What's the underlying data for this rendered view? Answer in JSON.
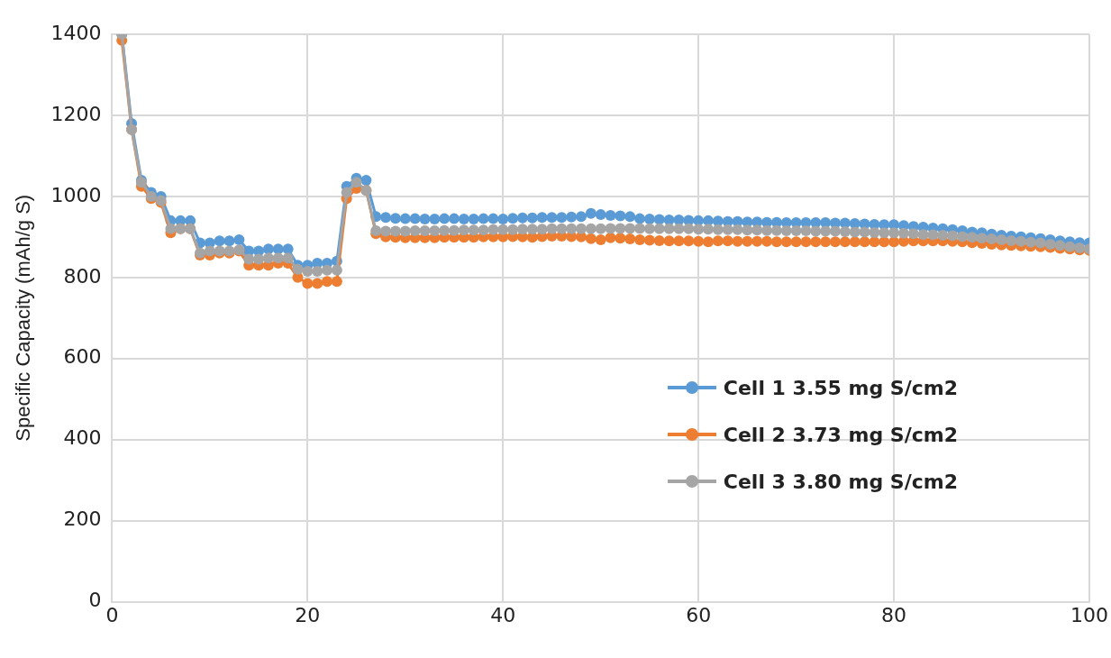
{
  "chart_data": {
    "type": "line",
    "ylabel": "Specific Capacity (mAh/g S)",
    "xlim": [
      0,
      100
    ],
    "xticks": [
      0,
      20,
      40,
      60,
      80,
      100
    ],
    "ylim": [
      0,
      1400
    ],
    "yticks": [
      0,
      200,
      400,
      600,
      800,
      1000,
      1200,
      1400
    ],
    "grid": true,
    "legend": "right",
    "marker": "circle",
    "line_style": "solid",
    "x": [
      1,
      2,
      3,
      4,
      5,
      6,
      7,
      8,
      9,
      10,
      11,
      12,
      13,
      14,
      15,
      16,
      17,
      18,
      19,
      20,
      21,
      22,
      23,
      24,
      25,
      26,
      27,
      28,
      29,
      30,
      31,
      32,
      33,
      34,
      35,
      36,
      37,
      38,
      39,
      40,
      41,
      42,
      43,
      44,
      45,
      46,
      47,
      48,
      49,
      50,
      51,
      52,
      53,
      54,
      55,
      56,
      57,
      58,
      59,
      60,
      61,
      62,
      63,
      64,
      65,
      66,
      67,
      68,
      69,
      70,
      71,
      72,
      73,
      74,
      75,
      76,
      77,
      78,
      79,
      80,
      81,
      82,
      83,
      84,
      85,
      86,
      87,
      88,
      89,
      90,
      91,
      92,
      93,
      94,
      95,
      96,
      97,
      98,
      99,
      100
    ],
    "series": [
      {
        "name": "Cell 1 3.55 mg S/cm2",
        "color": "#5b9bd5",
        "values": [
          1400,
          1180,
          1040,
          1010,
          1000,
          940,
          940,
          940,
          885,
          885,
          890,
          890,
          893,
          865,
          865,
          870,
          870,
          870,
          830,
          830,
          835,
          835,
          840,
          1025,
          1045,
          1040,
          950,
          948,
          946,
          945,
          945,
          944,
          944,
          945,
          945,
          944,
          944,
          945,
          945,
          944,
          946,
          947,
          947,
          948,
          948,
          948,
          949,
          950,
          958,
          955,
          953,
          952,
          950,
          945,
          944,
          943,
          942,
          942,
          941,
          940,
          940,
          939,
          938,
          938,
          937,
          937,
          936,
          936,
          935,
          935,
          935,
          935,
          935,
          934,
          934,
          933,
          932,
          931,
          930,
          930,
          928,
          926,
          924,
          922,
          920,
          918,
          915,
          912,
          910,
          907,
          904,
          902,
          900,
          898,
          896,
          893,
          890,
          888,
          886,
          885
        ]
      },
      {
        "name": "Cell 2 3.73 mg S/cm2",
        "color": "#ed7d31",
        "values": [
          1385,
          1165,
          1025,
          995,
          985,
          910,
          920,
          920,
          855,
          855,
          860,
          860,
          865,
          830,
          830,
          830,
          835,
          835,
          800,
          785,
          785,
          790,
          790,
          995,
          1020,
          1015,
          908,
          900,
          899,
          898,
          898,
          898,
          898,
          899,
          899,
          899,
          899,
          900,
          900,
          900,
          901,
          900,
          899,
          901,
          902,
          902,
          901,
          900,
          896,
          893,
          898,
          897,
          895,
          893,
          892,
          891,
          890,
          890,
          890,
          889,
          888,
          890,
          890,
          889,
          889,
          889,
          889,
          888,
          888,
          888,
          888,
          888,
          888,
          888,
          888,
          888,
          888,
          888,
          888,
          888,
          889,
          890,
          890,
          890,
          890,
          889,
          888,
          886,
          884,
          882,
          880,
          879,
          878,
          877,
          876,
          874,
          872,
          870,
          868,
          867
        ]
      },
      {
        "name": "Cell 3 3.80 mg S/cm2",
        "color": "#a5a5a5",
        "values": [
          1400,
          1165,
          1035,
          1000,
          990,
          920,
          920,
          920,
          860,
          865,
          865,
          865,
          868,
          845,
          845,
          848,
          848,
          848,
          820,
          815,
          815,
          818,
          818,
          1010,
          1035,
          1015,
          915,
          914,
          914,
          914,
          915,
          915,
          915,
          916,
          916,
          917,
          917,
          917,
          918,
          918,
          918,
          919,
          919,
          919,
          920,
          920,
          920,
          920,
          920,
          920,
          921,
          921,
          921,
          921,
          920,
          920,
          920,
          920,
          920,
          919,
          919,
          918,
          918,
          918,
          917,
          917,
          916,
          916,
          915,
          915,
          915,
          914,
          914,
          914,
          913,
          912,
          912,
          911,
          910,
          910,
          909,
          908,
          906,
          905,
          904,
          903,
          901,
          899,
          897,
          895,
          893,
          891,
          889,
          887,
          885,
          882,
          879,
          876,
          873,
          870
        ]
      }
    ]
  }
}
